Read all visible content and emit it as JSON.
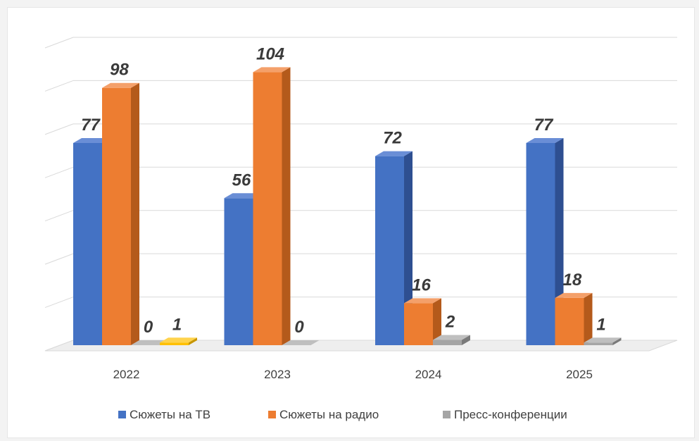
{
  "chart_data": {
    "type": "bar",
    "categories": [
      "2022",
      "2023",
      "2024",
      "2025"
    ],
    "series": [
      {
        "name": "Сюжеты на ТВ",
        "values": [
          77,
          56,
          72,
          77
        ],
        "labels": [
          "77",
          "56",
          "72",
          "77"
        ],
        "color": "#4472C4",
        "side": "#2E4F91",
        "top": "#6A8ED6"
      },
      {
        "name": "Сюжеты на радио",
        "values": [
          98,
          104,
          16,
          18
        ],
        "labels": [
          "98",
          "104",
          "16",
          "18"
        ],
        "color": "#ED7D31",
        "side": "#B45A1B",
        "top": "#F4A06A"
      },
      {
        "name": "Пресс-конференции",
        "values": [
          0,
          0,
          2,
          1
        ],
        "labels": [
          "0",
          "0",
          "2",
          "1"
        ],
        "color": "#A5A5A5",
        "side": "#7A7A7A",
        "top": "#BFBFBF"
      },
      {
        "name": "",
        "values": [
          1,
          null,
          null,
          null
        ],
        "labels": [
          "1",
          "",
          "",
          ""
        ],
        "color": "#FFC000",
        "side": "#C79500",
        "top": "#FFD34D"
      }
    ],
    "ylim": [
      0,
      120
    ],
    "grid": true,
    "legend": "bottom",
    "style": "3d-clustered-column",
    "title": "",
    "xlabel": "",
    "ylabel": ""
  }
}
